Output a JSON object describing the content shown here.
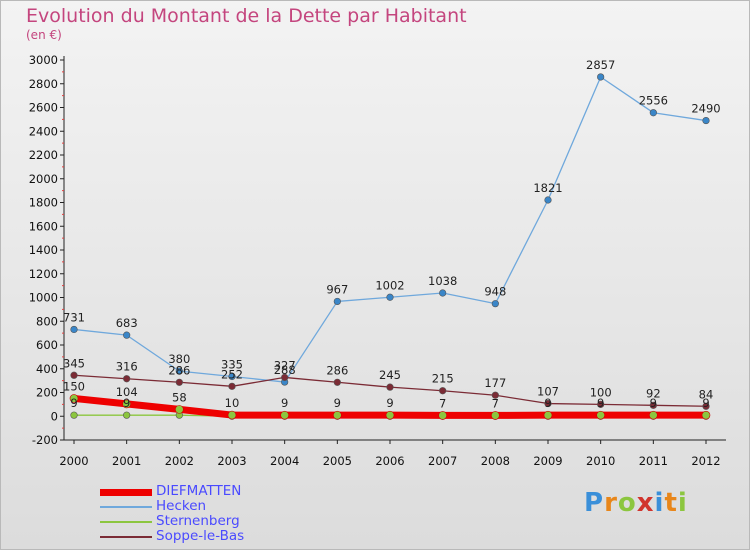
{
  "title": "Evolution du Montant de la Dette par Habitant",
  "unit": "(en €)",
  "logo": {
    "text": "Proxiti",
    "colors": [
      "#3a8fd9",
      "#e8861a",
      "#8cc63f",
      "#d1342d",
      "#3a8fd9",
      "#e8861a",
      "#8cc63f"
    ]
  },
  "chart_data": {
    "type": "line",
    "title": "Evolution du Montant de la Dette par Habitant",
    "ylabel": "(en €)",
    "xlabel": "",
    "x": [
      "2000",
      "2001",
      "2002",
      "2003",
      "2004",
      "2005",
      "2006",
      "2007",
      "2008",
      "2009",
      "2010",
      "2011",
      "2012"
    ],
    "ylim": [
      -200,
      3000
    ],
    "yticks": [
      -200,
      0,
      200,
      400,
      600,
      800,
      1000,
      1200,
      1400,
      1600,
      1800,
      2000,
      2200,
      2400,
      2600,
      2800,
      3000
    ],
    "grid": false,
    "legend": "bottom-left",
    "series": [
      {
        "name": "DIEFMATTEN",
        "color": "#ee0000",
        "marker": "#8cc63f",
        "values": [
          150,
          104,
          58,
          10,
          9,
          9,
          9,
          7,
          7,
          9,
          9,
          9,
          9
        ],
        "labels": [
          "150",
          "104",
          "58",
          "10",
          "9",
          "9",
          "9",
          "7",
          "7",
          "9",
          "9",
          "9",
          "9"
        ]
      },
      {
        "name": "Hecken",
        "color": "#6fa8dc",
        "marker": "#3a86c8",
        "values": [
          731,
          683,
          380,
          335,
          288,
          967,
          1002,
          1038,
          948,
          1821,
          2857,
          2556,
          2490
        ],
        "labels": [
          "731",
          "683",
          "380",
          "335",
          "288",
          "967",
          "1002",
          "1038",
          "948",
          "1821",
          "2857",
          "2556",
          "2490"
        ]
      },
      {
        "name": "Sternenberg",
        "color": "#8cc63f",
        "marker": "#8cc63f",
        "values": [
          9,
          9,
          9,
          0,
          0,
          0,
          0,
          0,
          0,
          0,
          0,
          0,
          0
        ],
        "labels": [
          "9",
          "9",
          "",
          "",
          "",
          "",
          "",
          "",
          "",
          "",
          "",
          "",
          ""
        ]
      },
      {
        "name": "Soppe-le-Bas",
        "color": "#7b2b35",
        "marker": "#7b2b35",
        "values": [
          345,
          316,
          286,
          252,
          327,
          286,
          245,
          215,
          177,
          107,
          100,
          92,
          84
        ],
        "labels": [
          "345",
          "316",
          "286",
          "252",
          "327",
          "286",
          "245",
          "215",
          "177",
          "107",
          "100",
          "92",
          "84"
        ]
      }
    ]
  }
}
